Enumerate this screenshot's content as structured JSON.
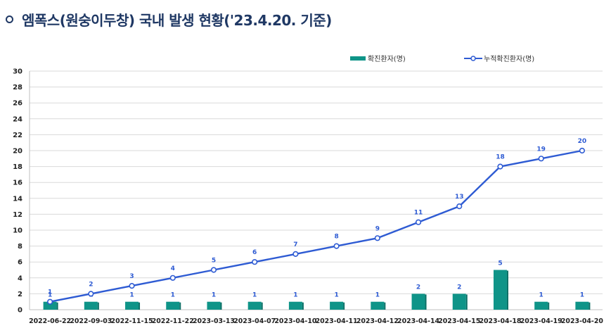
{
  "title": "엠폭스(원숭이두창) 국내 발생 현황('23.4.20. 기준)",
  "colors": {
    "bar": "#0f9488",
    "bar_dark": "#0b6f66",
    "line": "#2e5bd3",
    "title": "#1f3864",
    "grid": "#d9d9d9"
  },
  "chart_data": {
    "type": "bar+line",
    "title": "엠폭스(원숭이두창) 국내 발생 현황('23.4.20. 기준)",
    "categories": [
      "2022-06-22",
      "2022-09-03",
      "2022-11-15",
      "2022-11-22",
      "2023-03-13",
      "2023-04-07",
      "2023-04-10",
      "2023-04-11",
      "2023-04-12",
      "2023-04-14",
      "2023-04-15",
      "2023-04-18",
      "2023-04-19",
      "2023-04-20"
    ],
    "series": [
      {
        "name": "확진환자(명)",
        "kind": "bar",
        "values": [
          1,
          1,
          1,
          1,
          1,
          1,
          1,
          1,
          1,
          2,
          2,
          5,
          1,
          1
        ]
      },
      {
        "name": "누적확진환자(명)",
        "kind": "line",
        "values": [
          1,
          2,
          3,
          4,
          5,
          6,
          7,
          8,
          9,
          11,
          13,
          18,
          19,
          20
        ]
      }
    ],
    "ylim": [
      0,
      30
    ],
    "yticks": [
      0,
      2,
      4,
      6,
      8,
      10,
      12,
      14,
      16,
      18,
      20,
      22,
      24,
      26,
      28,
      30
    ],
    "legend": "top-right"
  }
}
